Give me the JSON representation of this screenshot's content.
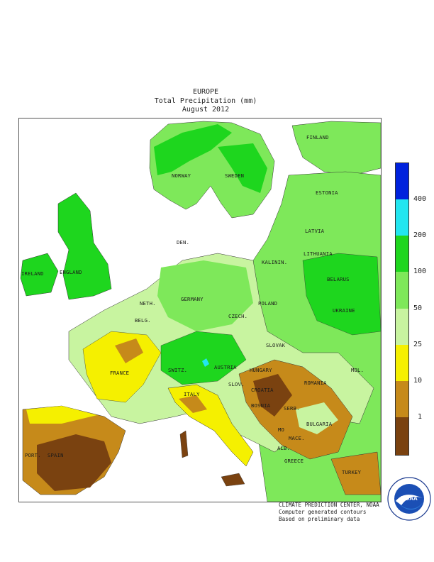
{
  "header": {
    "region": "EUROPE",
    "product": "Total Precipitation (mm)",
    "period": "August 2012"
  },
  "countries": {
    "finland": "FINLAND",
    "norway": "NORWAY",
    "sweden": "SWEDEN",
    "estonia": "ESTONIA",
    "latvia": "LATVIA",
    "lithuania": "LITHUANIA",
    "kalinin": "KALININ.",
    "den": "DEN.",
    "ireland": "IRELAND",
    "england": "ENGLAND",
    "belarus": "BELARUS",
    "neth": "NETH.",
    "germany": "GERMANY",
    "poland": "POLAND",
    "belg": "BELG.",
    "czech": "CZECH.",
    "ukraine": "UKRAINE",
    "slovak": "SLOVAK",
    "france": "FRANCE",
    "switz": "SWITZ.",
    "austria": "AUSTRIA",
    "hungary": "HUNGARY",
    "mol": "MOL.",
    "romania": "ROMANIA",
    "slov": "SLOV.",
    "croatia": "CROATIA",
    "italy": "ITALY",
    "bosnia": "BOSNIA",
    "serb": "SERB.",
    "mo": "MO",
    "bulgaria": "BULGARIA",
    "mace": "MACE.",
    "port": "PORT.",
    "spain": "SPAIN",
    "alb": "ALB.",
    "greece": "GREECE",
    "turkey": "TURKEY"
  },
  "legend": {
    "labels": [
      "400",
      "200",
      "100",
      "50",
      "25",
      "10",
      "1"
    ],
    "colors": {
      "above_400": "#0022dd",
      "200_400": "#22e6f0",
      "100_200": "#1ed61e",
      "50_100": "#7ee85a",
      "25_50": "#c8f4a0",
      "10_25": "#f5f000",
      "1_10": "#c68a1a",
      "below_1": "#7a4210"
    }
  },
  "credits": {
    "line1": "CLIMATE PREDICTION CENTER, NOAA",
    "line2": "Computer generated contours",
    "line3": "Based on preliminary data"
  },
  "logo": {
    "text": "NOAA",
    "ring_text": "NATIONAL OCEANIC AND ATMOSPHERIC ADMINISTRATION · U.S. DEPARTMENT OF COMMERCE"
  }
}
